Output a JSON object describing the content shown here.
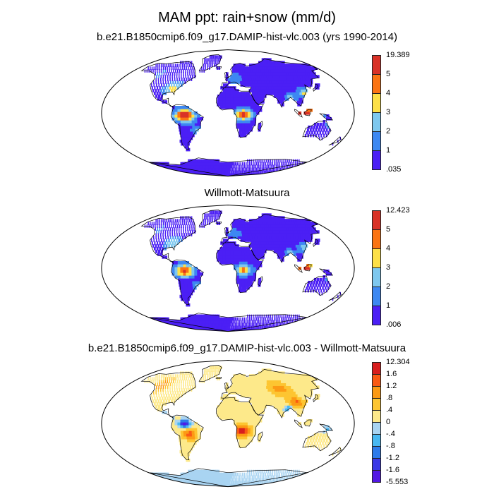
{
  "title": "MAM ppt: rain+snow (mm/d)",
  "panels": [
    {
      "title": "b.e21.B1850cmip6.f09_g17.DAMIP-hist-vlc.003 (yrs 1990-2014)",
      "colorbar": {
        "labels": [
          "19.389",
          "5",
          "4",
          "3",
          "2",
          "1",
          ".035"
        ],
        "colors": [
          "#d93227",
          "#fb7413",
          "#fde047",
          "#7ec8ef",
          "#3d88f2",
          "#4b1ff5"
        ]
      }
    },
    {
      "title": "Willmott-Matsuura",
      "colorbar": {
        "labels": [
          "12.423",
          "5",
          "4",
          "3",
          "2",
          "1",
          ".006"
        ],
        "colors": [
          "#d93227",
          "#fb7413",
          "#fde047",
          "#7ec8ef",
          "#3d88f2",
          "#4b1ff5"
        ]
      }
    },
    {
      "title": "b.e21.B1850cmip6.f09_g17.DAMIP-hist-vlc.003 - Willmott-Matsuura",
      "colorbar": {
        "labels": [
          "12.304",
          "1.6",
          "1.2",
          ".8",
          ".4",
          "0",
          "-.4",
          "-.8",
          "-1.2",
          "-1.6",
          "-5.553"
        ],
        "colors": [
          "#d81e1e",
          "#fa5a14",
          "#fc9a14",
          "#fdc531",
          "#fde98a",
          "#a9d4f2",
          "#48b8f2",
          "#2e7bea",
          "#3a38e6",
          "#5217e4"
        ]
      }
    }
  ]
}
